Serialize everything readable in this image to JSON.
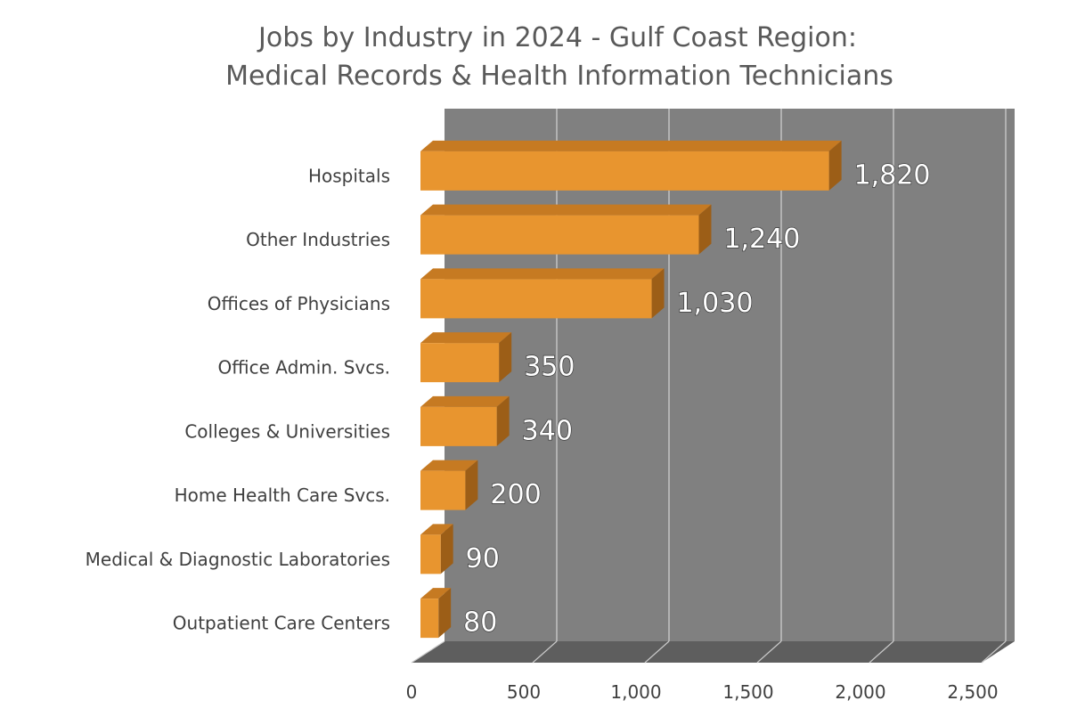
{
  "chart_data": {
    "type": "bar",
    "orientation": "horizontal",
    "title_lines": [
      "Jobs by Industry in 2024 - Gulf Coast Region:",
      "Medical Records & Health Information Technicians"
    ],
    "categories": [
      "Hospitals",
      "Other Industries",
      "Offices of Physicians",
      "Office Admin. Svcs.",
      "Colleges & Universities",
      "Home Health Care Svcs.",
      "Medical & Diagnostic Laboratories",
      "Outpatient Care Centers"
    ],
    "values": [
      1820,
      1240,
      1030,
      350,
      340,
      200,
      90,
      80
    ],
    "value_labels": [
      "1,820",
      "1,240",
      "1,030",
      "350",
      "340",
      "200",
      "90",
      "80"
    ],
    "xlim": [
      0,
      2500
    ],
    "ticks": [
      0,
      500,
      1000,
      1500,
      2000,
      2500
    ],
    "tick_labels": [
      "0",
      "500",
      "1,000",
      "1,500",
      "2,000",
      "2,500"
    ],
    "grid": true,
    "three_d": true,
    "legend": "none",
    "colors": {
      "bar_front": "#E8952F",
      "bar_top": "#C67A22",
      "bar_side": "#9C5E17",
      "back_wall": "#808080",
      "floor": "#5E5E5E",
      "gridline": "#C8C8C8"
    }
  }
}
